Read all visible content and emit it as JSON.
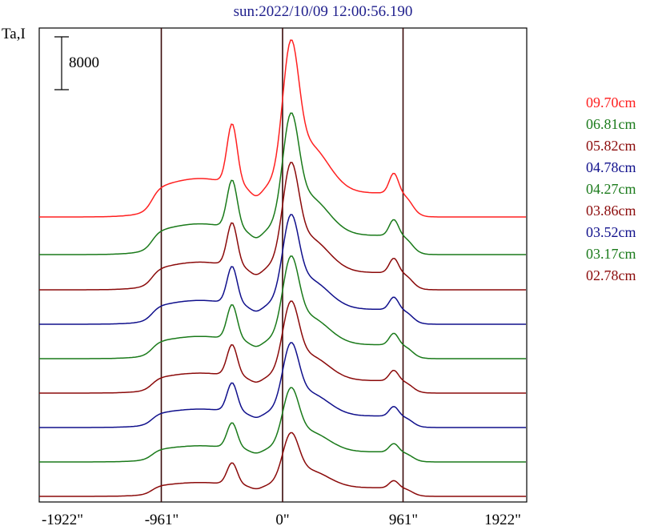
{
  "title": "sun:2022/10/09 12:00:56.190",
  "chart_data": {
    "type": "line",
    "title": "sun:2022/10/09 12:00:56.190",
    "ylabel": "Ta,I",
    "scale_bar_label": "8000",
    "x_tick_labels": [
      "-1922\"",
      "-961\"",
      "0\"",
      "961\"",
      "1922\""
    ],
    "x_ticks": [
      -1922,
      -961,
      0,
      961,
      1922
    ],
    "xlim": [
      -1922,
      1922
    ],
    "vertical_lines": [
      -961,
      0,
      961
    ],
    "grid": false,
    "legend_position": "right",
    "series": [
      {
        "name": "09.70cm",
        "color": "#ff2020"
      },
      {
        "name": "06.81cm",
        "color": "#1a7a1a"
      },
      {
        "name": "05.82cm",
        "color": "#8b0a0a"
      },
      {
        "name": "04.78cm",
        "color": "#10108c"
      },
      {
        "name": "04.27cm",
        "color": "#1a7a1a"
      },
      {
        "name": "03.86cm",
        "color": "#8b0a0a"
      },
      {
        "name": "03.52cm",
        "color": "#10108c"
      },
      {
        "name": "03.17cm",
        "color": "#1a7a1a"
      },
      {
        "name": "02.78cm",
        "color": "#8b0a0a"
      }
    ]
  }
}
